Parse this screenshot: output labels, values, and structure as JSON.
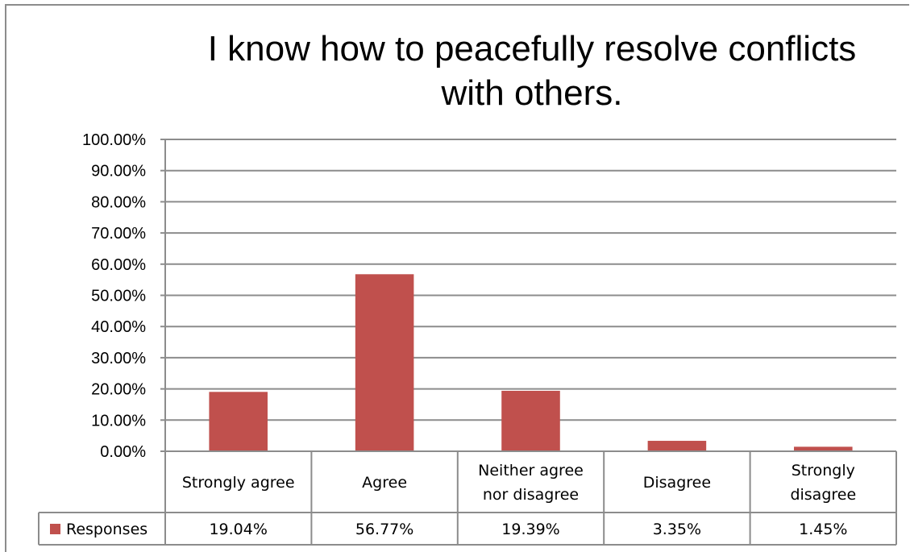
{
  "chart_data": {
    "type": "bar",
    "title_lines": [
      "I know how to peacefully resolve conflicts",
      "with others."
    ],
    "categories": [
      [
        "Strongly agree"
      ],
      [
        "Agree"
      ],
      [
        "Neither agree",
        "nor disagree"
      ],
      [
        "Disagree"
      ],
      [
        "Strongly",
        "disagree"
      ]
    ],
    "series": [
      {
        "name": "Responses",
        "values": [
          19.04,
          56.77,
          19.39,
          3.35,
          1.45
        ],
        "value_labels": [
          "19.04%",
          "56.77%",
          "19.39%",
          "3.35%",
          "1.45%"
        ],
        "color": "#c0504d"
      }
    ],
    "ylim": [
      0,
      100
    ],
    "yticks": [
      0,
      10,
      20,
      30,
      40,
      50,
      60,
      70,
      80,
      90,
      100
    ],
    "ytick_labels": [
      "0.00%",
      "10.00%",
      "20.00%",
      "30.00%",
      "40.00%",
      "50.00%",
      "60.00%",
      "70.00%",
      "80.00%",
      "90.00%",
      "100.00%"
    ],
    "grid": true,
    "data_table": true
  }
}
